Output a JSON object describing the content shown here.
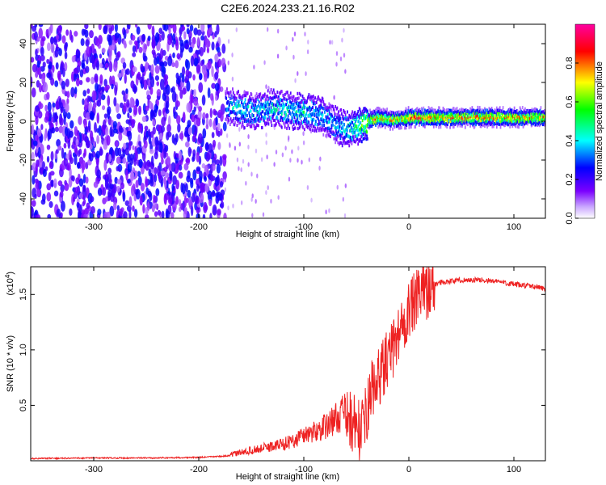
{
  "title": "C2E6.2024.233.21.16.R02",
  "chart_data": [
    {
      "type": "heatmap",
      "xlabel": "Height of straight line (km)",
      "ylabel": "Frequency (Hz)",
      "xlim": [
        -360,
        130
      ],
      "ylim": [
        -50,
        50
      ],
      "x_ticks": [
        -300,
        -200,
        -100,
        0,
        100
      ],
      "x_tick_labels": [
        "-300",
        "-200",
        "-100",
        "0",
        "100"
      ],
      "y_ticks": [
        -40,
        -20,
        0,
        20,
        40
      ],
      "y_tick_labels": [
        "-40",
        "-20",
        "0",
        "20",
        "40"
      ],
      "colorbar": {
        "label": "Normalized spectral amplitude",
        "range": [
          0,
          1
        ],
        "ticks": [
          0.0,
          0.2,
          0.4,
          0.6,
          0.8
        ],
        "tick_labels": [
          "0.0",
          "0.2",
          "0.4",
          "0.6",
          "0.8"
        ],
        "colors": [
          "#ffffff",
          "#7b00ff",
          "#0000ff",
          "#00ffff",
          "#00ff00",
          "#ffff00",
          "#ff0000",
          "#ff00a0"
        ]
      },
      "noise_region": {
        "x_range": [
          -360,
          -175
        ],
        "amplitude": 0.25
      },
      "ridge": {
        "x": [
          -175,
          -160,
          -150,
          -140,
          -130,
          -120,
          -110,
          -100,
          -90,
          -80,
          -70,
          -60,
          -50,
          -40,
          -30,
          -20,
          -10,
          0,
          20,
          40,
          60,
          80,
          100,
          130
        ],
        "y": [
          8,
          6,
          5,
          6,
          7,
          6,
          5,
          5,
          4,
          2,
          -2,
          -4,
          -3,
          0,
          2,
          1,
          1,
          2,
          2,
          2,
          2,
          2,
          2,
          2
        ],
        "amplitude": [
          0.4,
          0.45,
          0.45,
          0.45,
          0.5,
          0.45,
          0.45,
          0.5,
          0.45,
          0.4,
          0.4,
          0.5,
          0.55,
          0.7,
          0.85,
          0.8,
          0.85,
          0.85,
          0.85,
          0.85,
          0.85,
          0.85,
          0.8,
          0.8
        ]
      }
    },
    {
      "type": "line",
      "xlabel": "Height of straight line (km)",
      "ylabel": "SNR (10 * v/v)",
      "y_multiplier_label": "(x10",
      "y_multiplier_exp": "4",
      "y_multiplier_close": ")",
      "xlim": [
        -360,
        130
      ],
      "ylim": [
        0,
        17500
      ],
      "x_ticks": [
        -300,
        -200,
        -100,
        0,
        100
      ],
      "x_tick_labels": [
        "-300",
        "-200",
        "-100",
        "0",
        "100"
      ],
      "y_ticks": [
        5000,
        10000,
        15000
      ],
      "y_tick_labels": [
        "0.5",
        "1.0",
        "1.5"
      ],
      "color": "#ee2222",
      "series": [
        {
          "x": [
            -360,
            -300,
            -250,
            -200,
            -170,
            -150,
            -130,
            -110,
            -100,
            -90,
            -80,
            -70,
            -60,
            -50,
            -45,
            -40,
            -35,
            -30,
            -25,
            -20,
            -15,
            -10,
            -5,
            0,
            5,
            10,
            15,
            20,
            25,
            30,
            40,
            50,
            60,
            70,
            80,
            90,
            100,
            110,
            120,
            130
          ],
          "y": [
            200,
            250,
            250,
            300,
            450,
            800,
            1100,
            1500,
            2000,
            2200,
            2600,
            3200,
            3800,
            3200,
            2500,
            4500,
            6500,
            7000,
            8500,
            9000,
            10000,
            11500,
            12500,
            13500,
            14200,
            14800,
            15300,
            15700,
            15900,
            16100,
            16200,
            16300,
            16300,
            16300,
            16200,
            16100,
            15900,
            15800,
            15700,
            15500
          ]
        }
      ]
    }
  ]
}
